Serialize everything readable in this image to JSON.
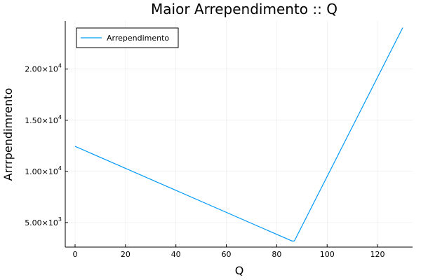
{
  "chart_data": {
    "type": "line",
    "title": "Maior Arrependimento :: Q",
    "xlabel": "Q",
    "ylabel": "Arrrpendimrento",
    "xlim": [
      -3.9,
      133.9
    ],
    "ylim": [
      2600,
      24700
    ],
    "grid": true,
    "legend_position": "top-left",
    "line_color": "#009AF9",
    "x_ticks": [
      {
        "value": 0,
        "label": "0"
      },
      {
        "value": 20,
        "label": "20"
      },
      {
        "value": 40,
        "label": "40"
      },
      {
        "value": 60,
        "label": "60"
      },
      {
        "value": 80,
        "label": "80"
      },
      {
        "value": 100,
        "label": "100"
      },
      {
        "value": 120,
        "label": "120"
      }
    ],
    "y_ticks": [
      {
        "value": 5000,
        "mantissa": "5.00",
        "exp": "3"
      },
      {
        "value": 10000,
        "mantissa": "1.00",
        "exp": "4"
      },
      {
        "value": 15000,
        "mantissa": "1.50",
        "exp": "4"
      },
      {
        "value": 20000,
        "mantissa": "2.00",
        "exp": "4"
      }
    ],
    "series": [
      {
        "name": "Arrependimento",
        "x": [
          0,
          86,
          87,
          130
        ],
        "y": [
          12450,
          3200,
          3200,
          24050
        ]
      }
    ]
  }
}
